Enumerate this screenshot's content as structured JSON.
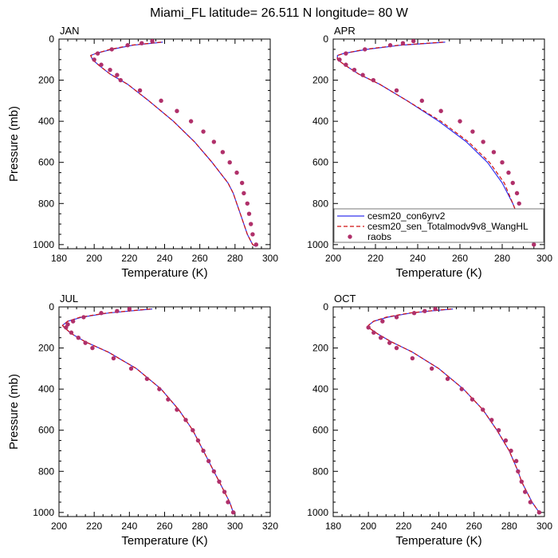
{
  "title": "Miami_FL  latitude= 26.511 N longitude= 80 W",
  "colors": {
    "cesm20_con6yrv2": "#3333ee",
    "cesm20_sen_Totalmodv9v8_WangHL": "#d11111",
    "raobs": "#b0306a"
  },
  "legend": {
    "placement": "lower-right of APR panel",
    "entries": [
      "cesm20_con6yrv2",
      "cesm20_sen_Totalmodv9v8_WangHL",
      "raobs"
    ]
  },
  "chart_data": [
    {
      "type": "line",
      "panel": "JAN",
      "xlabel": "Temperature (K)",
      "ylabel": "Pressure (mb)",
      "xlim": [
        180,
        300
      ],
      "ylim": [
        1020,
        0
      ],
      "x_ticks": [
        180,
        200,
        220,
        240,
        260,
        280,
        300
      ],
      "y_ticks": [
        0,
        200,
        400,
        600,
        800,
        1000
      ],
      "series": [
        {
          "name": "cesm20_con6yrv2",
          "style": "solid",
          "p": [
            15,
            30,
            50,
            70,
            80,
            100,
            130,
            170,
            220,
            300,
            400,
            500,
            600,
            700,
            750,
            800,
            850,
            900,
            950,
            1000,
            1010
          ],
          "t": [
            239,
            222,
            210,
            201,
            198,
            199,
            203,
            209,
            219,
            231,
            245,
            257,
            267,
            276,
            279,
            281,
            283,
            285,
            287,
            290,
            292
          ]
        },
        {
          "name": "cesm20_sen_Totalmodv9v8_WangHL",
          "style": "dashed",
          "p": [
            15,
            30,
            50,
            70,
            80,
            100,
            130,
            170,
            220,
            300,
            400,
            500,
            600,
            700,
            750,
            800,
            850,
            900,
            950,
            1000,
            1010
          ],
          "t": [
            238,
            221,
            209,
            201,
            198,
            199,
            203,
            209,
            219,
            231,
            245,
            257,
            267,
            276,
            279,
            281,
            283,
            285,
            287,
            290,
            292
          ]
        },
        {
          "name": "raobs",
          "style": "dots",
          "p": [
            10,
            20,
            30,
            50,
            70,
            100,
            125,
            150,
            175,
            200,
            250,
            300,
            350,
            400,
            450,
            500,
            550,
            600,
            650,
            700,
            750,
            800,
            850,
            900,
            950,
            1000
          ],
          "t": [
            233,
            227,
            219,
            210,
            202,
            200,
            204,
            209,
            213,
            215,
            226,
            238,
            247,
            255,
            262,
            268,
            273,
            277,
            281,
            284,
            285,
            287,
            288,
            289,
            290,
            292
          ]
        }
      ]
    },
    {
      "type": "line",
      "panel": "APR",
      "xlabel": "Temperature (K)",
      "ylabel": "",
      "xlim": [
        200,
        300
      ],
      "ylim": [
        1020,
        0
      ],
      "x_ticks": [
        200,
        220,
        240,
        260,
        280,
        300
      ],
      "y_ticks": [
        0,
        200,
        400,
        600,
        800,
        1000
      ],
      "series": [
        {
          "name": "cesm20_con6yrv2",
          "style": "solid",
          "p": [
            15,
            30,
            50,
            70,
            80,
            100,
            130,
            170,
            220,
            300,
            400,
            500,
            600,
            700,
            800,
            850,
            900,
            950,
            1000
          ],
          "t": [
            253,
            232,
            216,
            205,
            202,
            202,
            206,
            212,
            222,
            235,
            250,
            263,
            273,
            280,
            285,
            287,
            289,
            292,
            295
          ]
        },
        {
          "name": "cesm20_sen_Totalmodv9v8_WangHL",
          "style": "dashed",
          "p": [
            15,
            30,
            50,
            70,
            80,
            100,
            130,
            170,
            220,
            300,
            400,
            500,
            600,
            700,
            800,
            850,
            900,
            950,
            1000
          ],
          "t": [
            252,
            231,
            215,
            205,
            202,
            202,
            206,
            212,
            222,
            235,
            251,
            264,
            274,
            281,
            285,
            287,
            289,
            292,
            295
          ]
        },
        {
          "name": "raobs",
          "style": "dots",
          "p": [
            10,
            20,
            30,
            50,
            70,
            100,
            125,
            150,
            175,
            200,
            250,
            300,
            350,
            400,
            450,
            500,
            550,
            600,
            650,
            700,
            750,
            800,
            850,
            900,
            950,
            1000
          ],
          "t": [
            238,
            233,
            227,
            215,
            206,
            203,
            206,
            210,
            214,
            219,
            230,
            242,
            251,
            260,
            266,
            271,
            276,
            280,
            283,
            285,
            287,
            288,
            290,
            292,
            293,
            295
          ]
        }
      ]
    },
    {
      "type": "line",
      "panel": "JUL",
      "xlabel": "Temperature (K)",
      "ylabel": "Pressure (mb)",
      "xlim": [
        200,
        320
      ],
      "ylim": [
        1020,
        0
      ],
      "x_ticks": [
        200,
        220,
        240,
        260,
        280,
        300,
        320
      ],
      "y_ticks": [
        0,
        200,
        400,
        600,
        800,
        1000
      ],
      "series": [
        {
          "name": "cesm20_con6yrv2",
          "style": "solid",
          "p": [
            10,
            20,
            30,
            50,
            70,
            90,
            100,
            130,
            170,
            220,
            300,
            400,
            500,
            600,
            700,
            800,
            850,
            900,
            950,
            1000
          ],
          "t": [
            253,
            240,
            228,
            213,
            205,
            202,
            203,
            207,
            215,
            228,
            244,
            258,
            268,
            276,
            282,
            288,
            291,
            294,
            297,
            299
          ]
        },
        {
          "name": "cesm20_sen_Totalmodv9v8_WangHL",
          "style": "dashed",
          "p": [
            10,
            20,
            30,
            50,
            70,
            90,
            100,
            130,
            170,
            220,
            300,
            400,
            500,
            600,
            700,
            800,
            850,
            900,
            950,
            1000
          ],
          "t": [
            252,
            239,
            227,
            212,
            205,
            202,
            203,
            207,
            215,
            228,
            244,
            258,
            268,
            276,
            282,
            288,
            291,
            294,
            297,
            299
          ]
        },
        {
          "name": "raobs",
          "style": "dots",
          "p": [
            10,
            20,
            30,
            50,
            70,
            85,
            100,
            125,
            150,
            175,
            200,
            250,
            300,
            350,
            400,
            450,
            500,
            550,
            600,
            650,
            700,
            750,
            800,
            850,
            900,
            950,
            1000
          ],
          "t": [
            240,
            233,
            224,
            214,
            208,
            205,
            204,
            207,
            211,
            215,
            219,
            231,
            241,
            250,
            257,
            262,
            267,
            272,
            276,
            279,
            282,
            285,
            288,
            291,
            294,
            296,
            299
          ]
        }
      ]
    },
    {
      "type": "line",
      "panel": "OCT",
      "xlabel": "Temperature (K)",
      "ylabel": "",
      "xlim": [
        180,
        300
      ],
      "ylim": [
        1020,
        0
      ],
      "x_ticks": [
        180,
        200,
        220,
        240,
        260,
        280,
        300
      ],
      "y_ticks": [
        0,
        200,
        400,
        600,
        800,
        1000
      ],
      "series": [
        {
          "name": "cesm20_con6yrv2",
          "style": "solid",
          "p": [
            10,
            20,
            30,
            50,
            70,
            90,
            100,
            130,
            170,
            220,
            300,
            400,
            500,
            600,
            700,
            800,
            850,
            900,
            950,
            1000
          ],
          "t": [
            248,
            235,
            224,
            211,
            203,
            200,
            200,
            205,
            213,
            225,
            240,
            254,
            265,
            273,
            280,
            285,
            287,
            290,
            293,
            297
          ]
        },
        {
          "name": "cesm20_sen_Totalmodv9v8_WangHL",
          "style": "dashed",
          "p": [
            10,
            20,
            30,
            50,
            70,
            90,
            100,
            130,
            170,
            220,
            300,
            400,
            500,
            600,
            700,
            800,
            850,
            900,
            950,
            1000
          ],
          "t": [
            247,
            234,
            223,
            210,
            203,
            200,
            200,
            205,
            213,
            225,
            240,
            254,
            265,
            273,
            280,
            285,
            287,
            290,
            293,
            297
          ]
        },
        {
          "name": "raobs",
          "style": "dots",
          "p": [
            10,
            20,
            30,
            50,
            70,
            100,
            125,
            150,
            175,
            200,
            250,
            300,
            350,
            400,
            450,
            500,
            550,
            600,
            650,
            700,
            750,
            800,
            850,
            900,
            950,
            1000
          ],
          "t": [
            238,
            232,
            226,
            216,
            208,
            200,
            203,
            207,
            212,
            216,
            225,
            236,
            245,
            253,
            259,
            265,
            270,
            274,
            278,
            281,
            284,
            285,
            287,
            289,
            292,
            297
          ]
        }
      ]
    }
  ]
}
